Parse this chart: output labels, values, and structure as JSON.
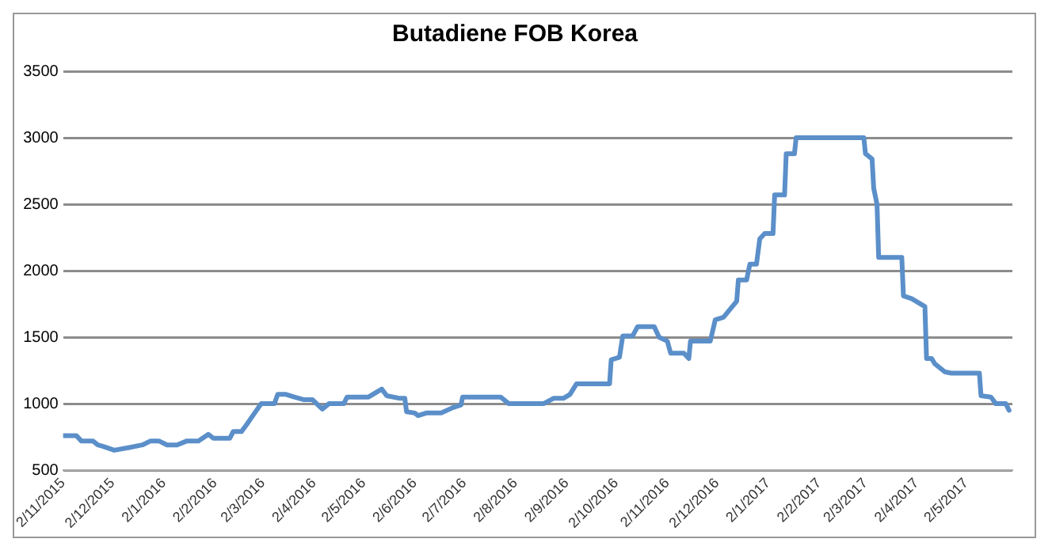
{
  "chart_data": {
    "type": "line",
    "title": "Butadiene FOB Korea",
    "x": [
      "2015-11-02",
      "2015-11-10",
      "2015-11-13",
      "2015-11-20",
      "2015-11-23",
      "2015-11-26",
      "2015-12-03",
      "2015-12-12",
      "2015-12-20",
      "2015-12-25",
      "2015-12-30",
      "2016-01-04",
      "2016-01-10",
      "2016-01-16",
      "2016-01-23",
      "2016-01-29",
      "2016-02-01",
      "2016-02-11",
      "2016-02-13",
      "2016-02-18",
      "2016-02-21",
      "2016-02-26",
      "2016-03-01",
      "2016-03-09",
      "2016-03-11",
      "2016-03-16",
      "2016-03-21",
      "2016-03-27",
      "2016-04-01",
      "2016-04-07",
      "2016-04-11",
      "2016-04-20",
      "2016-04-22",
      "2016-05-05",
      "2016-05-13",
      "2016-05-16",
      "2016-05-24",
      "2016-05-27",
      "2016-05-28",
      "2016-06-02",
      "2016-06-04",
      "2016-06-09",
      "2016-06-18",
      "2016-06-25",
      "2016-06-30",
      "2016-07-01",
      "2016-07-24",
      "2016-07-29",
      "2016-08-19",
      "2016-08-25",
      "2016-08-31",
      "2016-09-04",
      "2016-09-08",
      "2016-09-28",
      "2016-09-29",
      "2016-10-04",
      "2016-10-06",
      "2016-10-12",
      "2016-10-15",
      "2016-10-25",
      "2016-10-28",
      "2016-11-02",
      "2016-11-04",
      "2016-11-12",
      "2016-11-15",
      "2016-11-16",
      "2016-11-28",
      "2016-12-01",
      "2016-12-06",
      "2016-12-14",
      "2016-12-15",
      "2016-12-20",
      "2016-12-22",
      "2016-12-26",
      "2016-12-28",
      "2016-12-31",
      "2017-01-05",
      "2017-01-06",
      "2017-01-12",
      "2017-01-13",
      "2017-01-18",
      "2017-01-19",
      "2017-03-01",
      "2017-03-02",
      "2017-03-06",
      "2017-03-07",
      "2017-03-09",
      "2017-03-10",
      "2017-03-24",
      "2017-03-25",
      "2017-03-30",
      "2017-04-07",
      "2017-04-08",
      "2017-04-11",
      "2017-04-13",
      "2017-04-19",
      "2017-04-23",
      "2017-05-10",
      "2017-05-11",
      "2017-05-17",
      "2017-05-20",
      "2017-05-26",
      "2017-05-28"
    ],
    "series": [
      {
        "color": "#5b8fc9",
        "values": [
          760,
          760,
          720,
          720,
          690,
          680,
          650,
          670,
          690,
          720,
          720,
          690,
          690,
          720,
          720,
          770,
          740,
          740,
          790,
          790,
          840,
          930,
          1000,
          1000,
          1070,
          1070,
          1050,
          1030,
          1030,
          960,
          1000,
          1000,
          1050,
          1050,
          1110,
          1060,
          1040,
          1040,
          940,
          930,
          910,
          930,
          930,
          970,
          990,
          1050,
          1050,
          1000,
          1000,
          1040,
          1040,
          1070,
          1150,
          1150,
          1330,
          1350,
          1510,
          1510,
          1580,
          1580,
          1500,
          1470,
          1380,
          1380,
          1340,
          1470,
          1470,
          1630,
          1650,
          1770,
          1930,
          1930,
          2050,
          2050,
          2240,
          2280,
          2280,
          2570,
          2570,
          2880,
          2880,
          3000,
          3000,
          2880,
          2840,
          2620,
          2500,
          2100,
          2100,
          1810,
          1790,
          1730,
          1340,
          1340,
          1300,
          1240,
          1230,
          1230,
          1060,
          1050,
          1000,
          1000,
          950
        ]
      }
    ],
    "xlim": [
      "2015-11-02",
      "2017-05-30"
    ],
    "xticks": [
      {
        "value": "2015-11-02",
        "label": "2/11/2015"
      },
      {
        "value": "2015-12-02",
        "label": "2/12/2015"
      },
      {
        "value": "2016-01-02",
        "label": "2/1/2016"
      },
      {
        "value": "2016-02-02",
        "label": "2/2/2016"
      },
      {
        "value": "2016-03-02",
        "label": "2/3/2016"
      },
      {
        "value": "2016-04-02",
        "label": "2/4/2016"
      },
      {
        "value": "2016-05-02",
        "label": "2/5/2016"
      },
      {
        "value": "2016-06-02",
        "label": "2/6/2016"
      },
      {
        "value": "2016-07-02",
        "label": "2/7/2016"
      },
      {
        "value": "2016-08-02",
        "label": "2/8/2016"
      },
      {
        "value": "2016-09-02",
        "label": "2/9/2016"
      },
      {
        "value": "2016-10-02",
        "label": "2/10/2016"
      },
      {
        "value": "2016-11-02",
        "label": "2/11/2016"
      },
      {
        "value": "2016-12-02",
        "label": "2/12/2016"
      },
      {
        "value": "2017-01-02",
        "label": "2/1/2017"
      },
      {
        "value": "2017-02-02",
        "label": "2/2/2017"
      },
      {
        "value": "2017-03-02",
        "label": "2/3/2017"
      },
      {
        "value": "2017-04-02",
        "label": "2/4/2017"
      },
      {
        "value": "2017-05-02",
        "label": "2/5/2017"
      }
    ],
    "ylim": [
      500,
      3500
    ],
    "yticks": [
      500,
      1000,
      1500,
      2000,
      2500,
      3000,
      3500
    ],
    "grid": "y",
    "legend": false,
    "marker": "none",
    "line_style": "solid"
  }
}
